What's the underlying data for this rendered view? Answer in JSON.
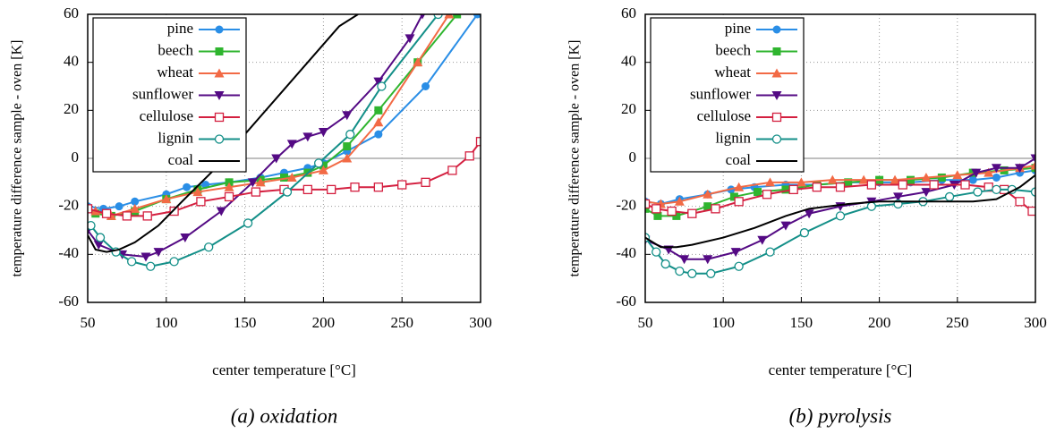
{
  "chart_data": [
    {
      "type": "line",
      "caption": "(a) oxidation",
      "xlabel": "center temperature [°C]",
      "ylabel": "temperature difference sample - oven [K]",
      "xlim": [
        50,
        300
      ],
      "xticks": [
        50,
        100,
        150,
        200,
        250,
        300
      ],
      "ylim": [
        -60,
        60
      ],
      "yticks": [
        -60,
        -40,
        -20,
        0,
        20,
        40,
        60
      ],
      "grid": true,
      "zero_line": true,
      "legend": "top-left",
      "series": [
        {
          "name": "pine",
          "color": "#2a8ee6",
          "marker": "circle",
          "x": [
            50,
            60,
            70,
            80,
            100,
            113,
            125,
            140,
            160,
            175,
            190,
            200,
            215,
            235,
            265,
            298
          ],
          "values": [
            -20,
            -21,
            -20,
            -18,
            -15,
            -12,
            -11,
            -10,
            -8,
            -6,
            -4,
            -2,
            3,
            10,
            30,
            60
          ]
        },
        {
          "name": "beech",
          "color": "#2fb52f",
          "marker": "square",
          "x": [
            55,
            65,
            80,
            100,
            120,
            140,
            160,
            175,
            190,
            200,
            215,
            235,
            260,
            285
          ],
          "values": [
            -23,
            -24,
            -22,
            -17,
            -13,
            -10,
            -9,
            -8,
            -6,
            -3,
            5,
            20,
            40,
            60
          ]
        },
        {
          "name": "wheat",
          "color": "#f26a45",
          "marker": "triangle",
          "x": [
            55,
            65,
            80,
            100,
            120,
            140,
            160,
            180,
            200,
            215,
            235,
            260,
            280
          ],
          "values": [
            -22,
            -24,
            -21,
            -17,
            -14,
            -12,
            -10,
            -8,
            -5,
            0,
            15,
            40,
            60
          ]
        },
        {
          "name": "sunflower",
          "color": "#540a84",
          "marker": "triangle-down",
          "x": [
            50,
            57,
            72,
            87,
            95,
            112,
            135,
            155,
            170,
            180,
            190,
            200,
            215,
            235,
            255,
            263
          ],
          "values": [
            -30,
            -36,
            -40,
            -41,
            -39,
            -33,
            -22,
            -10,
            0,
            6,
            9,
            11,
            18,
            32,
            50,
            60
          ]
        },
        {
          "name": "cellulose",
          "color": "#d42040",
          "marker": "square-open",
          "x": [
            50,
            62,
            75,
            88,
            105,
            122,
            140,
            157,
            175,
            190,
            205,
            220,
            235,
            250,
            265,
            282,
            293,
            300
          ],
          "values": [
            -21,
            -23,
            -24,
            -24,
            -22,
            -18,
            -16,
            -14,
            -13,
            -13,
            -13,
            -12,
            -12,
            -11,
            -10,
            -5,
            1,
            7
          ]
        },
        {
          "name": "lignin",
          "color": "#138f88",
          "marker": "circle-open",
          "x": [
            52,
            58,
            68,
            78,
            90,
            105,
            127,
            152,
            177,
            197,
            217,
            237,
            273
          ],
          "values": [
            -28,
            -33,
            -39,
            -43,
            -45,
            -43,
            -37,
            -27,
            -14,
            -2,
            10,
            30,
            60
          ]
        },
        {
          "name": "coal",
          "color": "#000000",
          "marker": "none",
          "x": [
            50,
            55,
            62,
            70,
            80,
            95,
            110,
            130,
            150,
            170,
            190,
            210,
            222
          ],
          "values": [
            -32,
            -38,
            -39,
            -38,
            -35,
            -28,
            -18,
            -5,
            10,
            25,
            40,
            55,
            60
          ]
        }
      ]
    },
    {
      "type": "line",
      "caption": "(b) pyrolysis",
      "xlabel": "center temperature [°C]",
      "ylabel": "temperature difference sample - oven [K]",
      "xlim": [
        50,
        300
      ],
      "xticks": [
        50,
        100,
        150,
        200,
        250,
        300
      ],
      "ylim": [
        -60,
        60
      ],
      "yticks": [
        -60,
        -40,
        -20,
        0,
        20,
        40,
        60
      ],
      "grid": true,
      "zero_line": true,
      "legend": "top-left",
      "series": [
        {
          "name": "pine",
          "color": "#2a8ee6",
          "marker": "circle",
          "x": [
            50,
            60,
            72,
            90,
            105,
            120,
            140,
            160,
            180,
            200,
            220,
            240,
            260,
            275,
            290,
            300
          ],
          "values": [
            -18,
            -19,
            -17,
            -15,
            -13,
            -12,
            -11,
            -11,
            -10,
            -10,
            -10,
            -9,
            -9,
            -8,
            -6,
            -5
          ]
        },
        {
          "name": "beech",
          "color": "#2fb52f",
          "marker": "square",
          "x": [
            50,
            58,
            70,
            90,
            107,
            122,
            140,
            160,
            180,
            200,
            220,
            240,
            260,
            280,
            300
          ],
          "values": [
            -21,
            -24,
            -24,
            -20,
            -16,
            -14,
            -13,
            -11,
            -10,
            -9,
            -9,
            -8,
            -6,
            -5,
            -4
          ]
        },
        {
          "name": "wheat",
          "color": "#f26a45",
          "marker": "triangle",
          "x": [
            50,
            60,
            72,
            90,
            110,
            130,
            150,
            170,
            190,
            210,
            230,
            250,
            270,
            290,
            300
          ],
          "values": [
            -18,
            -19,
            -18,
            -15,
            -12,
            -10,
            -10,
            -9,
            -9,
            -9,
            -8,
            -7,
            -6,
            -4,
            -3
          ]
        },
        {
          "name": "sunflower",
          "color": "#540a84",
          "marker": "triangle-down",
          "x": [
            50,
            65,
            75,
            90,
            108,
            125,
            140,
            155,
            175,
            195,
            212,
            230,
            248,
            262,
            275,
            290,
            300
          ],
          "values": [
            -34,
            -38,
            -42,
            -42,
            -39,
            -34,
            -28,
            -23,
            -20,
            -18,
            -16,
            -14,
            -11,
            -6,
            -4,
            -4,
            0
          ]
        },
        {
          "name": "cellulose",
          "color": "#d42040",
          "marker": "square-open",
          "x": [
            50,
            57,
            67,
            80,
            95,
            110,
            128,
            145,
            160,
            175,
            195,
            215,
            235,
            255,
            270,
            280,
            290,
            298
          ],
          "values": [
            -19,
            -21,
            -22,
            -23,
            -21,
            -18,
            -15,
            -13,
            -12,
            -12,
            -11,
            -11,
            -11,
            -11,
            -12,
            -13,
            -18,
            -22
          ]
        },
        {
          "name": "lignin",
          "color": "#138f88",
          "marker": "circle-open",
          "x": [
            50,
            57,
            63,
            72,
            80,
            92,
            110,
            130,
            152,
            175,
            195,
            212,
            228,
            245,
            263,
            275,
            285,
            300
          ],
          "values": [
            -33,
            -39,
            -44,
            -47,
            -48,
            -48,
            -45,
            -39,
            -31,
            -24,
            -20,
            -19,
            -18,
            -16,
            -14,
            -13,
            -13,
            -14
          ]
        },
        {
          "name": "coal",
          "color": "#000000",
          "marker": "none",
          "x": [
            50,
            60,
            70,
            80,
            100,
            120,
            140,
            155,
            180,
            200,
            220,
            240,
            260,
            275,
            290,
            300
          ],
          "values": [
            -33,
            -37,
            -37,
            -36,
            -33,
            -29,
            -24,
            -21,
            -19,
            -18,
            -18,
            -18,
            -18,
            -17,
            -12,
            -7
          ]
        }
      ]
    }
  ]
}
